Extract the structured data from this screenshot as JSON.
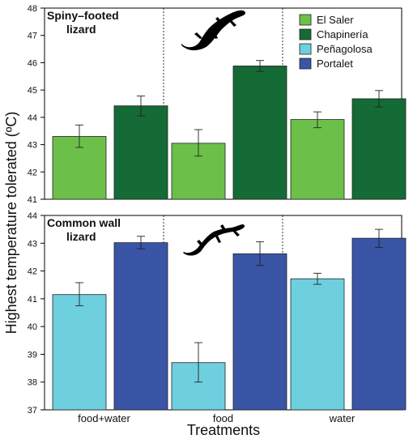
{
  "chart_data": {
    "type": "bar",
    "ylabel": "Highest temperature tolerated (ºC)",
    "xlabel": "Treatments",
    "categories": [
      "food+water",
      "food",
      "water"
    ],
    "legend_position": "top-right",
    "colors": {
      "El Saler": "#6cc04a",
      "Chapinería": "#146b35",
      "Peñagolosa": "#6ecfdf",
      "Portalet": "#3a54a6"
    },
    "legend": [
      "El Saler",
      "Chapinería",
      "Peñagolosa",
      "Portalet"
    ],
    "panels": [
      {
        "title": [
          "Spiny–footed",
          "lizard"
        ],
        "ylim": [
          41,
          48
        ],
        "yticks": [
          41,
          42,
          43,
          44,
          45,
          46,
          47,
          48
        ],
        "series": [
          {
            "name": "El Saler",
            "values": [
              43.3,
              43.05,
              43.92
            ],
            "err_low": [
              42.9,
              42.58,
              43.62
            ],
            "err_high": [
              43.72,
              43.55,
              44.2
            ]
          },
          {
            "name": "Chapinería",
            "values": [
              44.42,
              45.88,
              44.68
            ],
            "err_low": [
              44.05,
              45.68,
              44.38
            ],
            "err_high": [
              44.78,
              46.08,
              44.98
            ]
          }
        ]
      },
      {
        "title": [
          "Common wall",
          "lizard"
        ],
        "ylim": [
          37,
          44
        ],
        "yticks": [
          37,
          38,
          39,
          40,
          41,
          42,
          43,
          44
        ],
        "series": [
          {
            "name": "Peñagolosa",
            "values": [
              41.15,
              38.7,
              41.72
            ],
            "err_low": [
              40.75,
              38.0,
              41.52
            ],
            "err_high": [
              41.58,
              39.42,
              41.92
            ]
          },
          {
            "name": "Portalet",
            "values": [
              43.02,
              42.62,
              43.18
            ],
            "err_low": [
              42.8,
              42.2,
              42.85
            ],
            "err_high": [
              43.25,
              43.05,
              43.5
            ]
          }
        ]
      }
    ]
  }
}
